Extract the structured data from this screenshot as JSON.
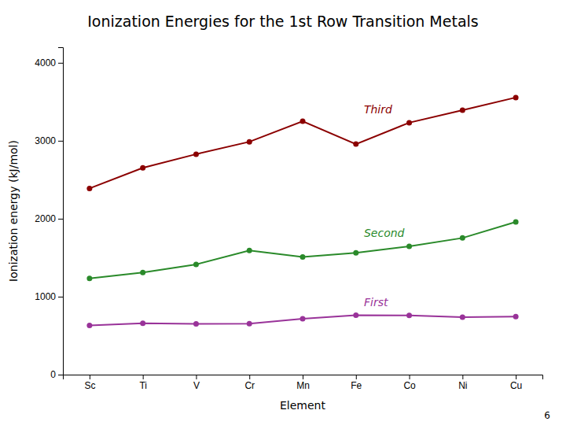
{
  "chart_data": {
    "type": "line",
    "title": "Ionization Energies for the 1st Row Transition Metals",
    "x_label": "Element",
    "y_label": "Ionization energy (kJ/mol)",
    "categories": [
      "Sc",
      "Ti",
      "V",
      "Cr",
      "Mn",
      "Fe",
      "Co",
      "Ni",
      "Cu"
    ],
    "series": [
      {
        "name": "Third",
        "color": "#8B0000",
        "marker": "circle",
        "values": [
          2389,
          2652,
          2828,
          2987,
          3251,
          2957,
          3232,
          3393,
          3555
        ]
      },
      {
        "name": "Second",
        "color": "#2a8a2a",
        "marker": "circle",
        "values": [
          1235,
          1310,
          1414,
          1592,
          1509,
          1562,
          1646,
          1753,
          1958
        ]
      },
      {
        "name": "First",
        "color": "#993399",
        "marker": "circle",
        "values": [
          631,
          658,
          650,
          653,
          717,
          762,
          760,
          736,
          745
        ]
      }
    ],
    "ylim": [
      0,
      4200
    ],
    "yticks": [
      0,
      1000,
      2000,
      3000,
      4000
    ],
    "annotations": [
      {
        "text": "6"
      }
    ]
  }
}
